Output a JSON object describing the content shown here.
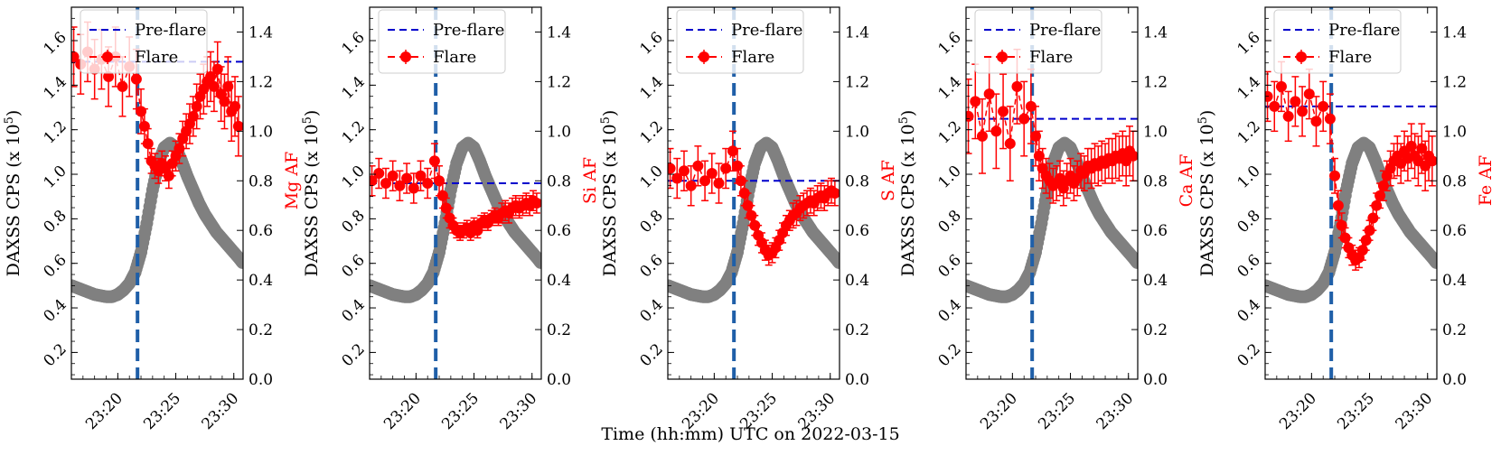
{
  "figure": {
    "xlabel": "Time (hh:mm) UTC on 2022-03-15",
    "left_ylabel": "DAXSS CPS (x 10",
    "left_ylabel_sup": "5",
    "left_ylabel_end": ")",
    "colors": {
      "daxss": "#808080",
      "flare": "#ff0000",
      "preflare": "#0000cc",
      "flare_start": "#1f5fa8"
    }
  },
  "chart_data": [
    {
      "type": "line",
      "title": "",
      "element": "Mg",
      "right_ylabel": "Mg AF",
      "x_ticks": [
        "23:20",
        "23:25",
        "23:30"
      ],
      "x_tick_values": [
        20,
        25,
        30
      ],
      "xlim": [
        16.0,
        30.8
      ],
      "left_ylim": [
        0.08,
        1.75
      ],
      "left_ticks": [
        "0.2",
        "0.4",
        "0.6",
        "0.8",
        "1.0",
        "1.2",
        "1.4",
        "1.6"
      ],
      "left_tick_values": [
        0.2,
        0.4,
        0.6,
        0.8,
        1.0,
        1.2,
        1.4,
        1.6
      ],
      "right_ylim": [
        0.0,
        1.5
      ],
      "right_ticks": [
        "0.0",
        "0.2",
        "0.4",
        "0.6",
        "0.8",
        "1.0",
        "1.2",
        "1.4"
      ],
      "right_tick_values": [
        0.0,
        0.2,
        0.4,
        0.6,
        0.8,
        1.0,
        1.2,
        1.4
      ],
      "flare_start": 21.7,
      "preflare_level": 1.28,
      "legend": [
        {
          "label": "Pre-flare"
        },
        {
          "label": "Flare"
        }
      ],
      "flare_series": {
        "x": [
          16.2,
          16.8,
          17.4,
          18.0,
          18.6,
          19.2,
          19.8,
          20.4,
          21.0,
          21.6,
          22.0,
          22.3,
          22.6,
          22.9,
          23.2,
          23.5,
          23.8,
          24.1,
          24.4,
          24.7,
          25.0,
          25.3,
          25.6,
          25.9,
          26.2,
          26.5,
          26.8,
          27.1,
          27.4,
          27.7,
          28.0,
          28.3,
          28.6,
          28.9,
          29.2,
          29.5,
          29.8,
          30.1,
          30.4
        ],
        "y": [
          1.3,
          1.27,
          1.32,
          1.25,
          1.29,
          1.22,
          1.3,
          1.18,
          1.26,
          1.21,
          1.08,
          1.02,
          0.95,
          0.88,
          0.86,
          0.84,
          0.87,
          0.85,
          0.82,
          0.87,
          0.9,
          0.93,
          0.97,
          1.0,
          1.03,
          1.06,
          1.1,
          1.14,
          1.17,
          1.2,
          1.22,
          1.18,
          1.25,
          1.15,
          1.12,
          1.18,
          1.08,
          1.1,
          1.02
        ],
        "err": [
          0.12,
          0.12,
          0.12,
          0.12,
          0.12,
          0.12,
          0.12,
          0.12,
          0.12,
          0.12,
          0.09,
          0.07,
          0.06,
          0.05,
          0.05,
          0.05,
          0.05,
          0.05,
          0.05,
          0.05,
          0.06,
          0.06,
          0.07,
          0.07,
          0.08,
          0.08,
          0.09,
          0.09,
          0.1,
          0.1,
          0.1,
          0.1,
          0.11,
          0.11,
          0.11,
          0.12,
          0.12,
          0.12,
          0.12
        ]
      }
    },
    {
      "type": "line",
      "title": "",
      "element": "Si",
      "right_ylabel": "Si AF",
      "x_ticks": [
        "23:20",
        "23:25",
        "23:30"
      ],
      "x_tick_values": [
        20,
        25,
        30
      ],
      "xlim": [
        16.0,
        30.8
      ],
      "left_ylim": [
        0.08,
        1.75
      ],
      "left_ticks": [
        "0.2",
        "0.4",
        "0.6",
        "0.8",
        "1.0",
        "1.2",
        "1.4",
        "1.6"
      ],
      "left_tick_values": [
        0.2,
        0.4,
        0.6,
        0.8,
        1.0,
        1.2,
        1.4,
        1.6
      ],
      "right_ylim": [
        0.0,
        1.5
      ],
      "right_ticks": [
        "0.0",
        "0.2",
        "0.4",
        "0.6",
        "0.8",
        "1.0",
        "1.2",
        "1.4"
      ],
      "right_tick_values": [
        0.0,
        0.2,
        0.4,
        0.6,
        0.8,
        1.0,
        1.2,
        1.4
      ],
      "flare_start": 21.7,
      "preflare_level": 0.79,
      "legend": [
        {
          "label": "Pre-flare"
        },
        {
          "label": "Flare"
        }
      ],
      "flare_series": {
        "x": [
          16.2,
          16.8,
          17.4,
          18.0,
          18.6,
          19.2,
          19.8,
          20.4,
          21.0,
          21.6,
          22.0,
          22.3,
          22.6,
          22.9,
          23.2,
          23.5,
          23.8,
          24.1,
          24.4,
          24.7,
          25.0,
          25.3,
          25.6,
          25.9,
          26.2,
          26.5,
          26.8,
          27.1,
          27.4,
          27.7,
          28.0,
          28.3,
          28.6,
          28.9,
          29.2,
          29.5,
          29.8,
          30.1,
          30.4
        ],
        "y": [
          0.8,
          0.83,
          0.79,
          0.82,
          0.78,
          0.81,
          0.77,
          0.82,
          0.79,
          0.88,
          0.8,
          0.74,
          0.69,
          0.65,
          0.62,
          0.6,
          0.59,
          0.6,
          0.61,
          0.59,
          0.62,
          0.6,
          0.63,
          0.64,
          0.63,
          0.65,
          0.66,
          0.65,
          0.67,
          0.68,
          0.67,
          0.69,
          0.7,
          0.69,
          0.7,
          0.71,
          0.7,
          0.72,
          0.71
        ],
        "err": [
          0.06,
          0.06,
          0.06,
          0.06,
          0.06,
          0.06,
          0.06,
          0.06,
          0.06,
          0.07,
          0.06,
          0.05,
          0.04,
          0.04,
          0.03,
          0.03,
          0.03,
          0.03,
          0.03,
          0.03,
          0.03,
          0.03,
          0.03,
          0.03,
          0.03,
          0.03,
          0.03,
          0.03,
          0.04,
          0.04,
          0.04,
          0.04,
          0.04,
          0.04,
          0.04,
          0.04,
          0.04,
          0.04,
          0.04
        ]
      }
    },
    {
      "type": "line",
      "title": "",
      "element": "S",
      "right_ylabel": "S AF",
      "x_ticks": [
        "23:20",
        "23:25",
        "23:30"
      ],
      "x_tick_values": [
        20,
        25,
        30
      ],
      "xlim": [
        16.0,
        30.8
      ],
      "left_ylim": [
        0.08,
        1.75
      ],
      "left_ticks": [
        "0.2",
        "0.4",
        "0.6",
        "0.8",
        "1.0",
        "1.2",
        "1.4",
        "1.6"
      ],
      "left_tick_values": [
        0.2,
        0.4,
        0.6,
        0.8,
        1.0,
        1.2,
        1.4,
        1.6
      ],
      "right_ylim": [
        0.0,
        1.5
      ],
      "right_ticks": [
        "0.0",
        "0.2",
        "0.4",
        "0.6",
        "0.8",
        "1.0",
        "1.2",
        "1.4"
      ],
      "right_tick_values": [
        0.0,
        0.2,
        0.4,
        0.6,
        0.8,
        1.0,
        1.2,
        1.4
      ],
      "flare_start": 21.7,
      "preflare_level": 0.8,
      "legend": [
        {
          "label": "Pre-flare"
        },
        {
          "label": "Flare"
        }
      ],
      "flare_series": {
        "x": [
          16.2,
          16.8,
          17.4,
          18.0,
          18.6,
          19.2,
          19.8,
          20.4,
          21.0,
          21.6,
          22.0,
          22.3,
          22.6,
          22.9,
          23.2,
          23.5,
          23.8,
          24.1,
          24.4,
          24.7,
          25.0,
          25.3,
          25.6,
          25.9,
          26.2,
          26.5,
          26.8,
          27.1,
          27.4,
          27.7,
          28.0,
          28.3,
          28.6,
          28.9,
          29.2,
          29.5,
          29.8,
          30.1,
          30.4
        ],
        "y": [
          0.85,
          0.81,
          0.84,
          0.78,
          0.86,
          0.8,
          0.83,
          0.79,
          0.85,
          0.92,
          0.86,
          0.8,
          0.75,
          0.7,
          0.66,
          0.62,
          0.58,
          0.55,
          0.52,
          0.5,
          0.51,
          0.53,
          0.56,
          0.59,
          0.62,
          0.64,
          0.66,
          0.67,
          0.69,
          0.7,
          0.71,
          0.72,
          0.71,
          0.73,
          0.74,
          0.73,
          0.75,
          0.76,
          0.75
        ],
        "err": [
          0.08,
          0.08,
          0.08,
          0.08,
          0.08,
          0.08,
          0.08,
          0.08,
          0.08,
          0.08,
          0.07,
          0.06,
          0.05,
          0.05,
          0.04,
          0.04,
          0.04,
          0.04,
          0.04,
          0.04,
          0.04,
          0.04,
          0.04,
          0.04,
          0.04,
          0.04,
          0.05,
          0.05,
          0.05,
          0.05,
          0.05,
          0.05,
          0.05,
          0.05,
          0.05,
          0.05,
          0.05,
          0.05,
          0.05
        ]
      }
    },
    {
      "type": "line",
      "title": "",
      "element": "Ca",
      "right_ylabel": "Ca AF",
      "x_ticks": [
        "23:20",
        "23:25",
        "23:30"
      ],
      "x_tick_values": [
        20,
        25,
        30
      ],
      "xlim": [
        16.0,
        30.8
      ],
      "left_ylim": [
        0.08,
        1.75
      ],
      "left_ticks": [
        "0.2",
        "0.4",
        "0.6",
        "0.8",
        "1.0",
        "1.2",
        "1.4",
        "1.6"
      ],
      "left_tick_values": [
        0.2,
        0.4,
        0.6,
        0.8,
        1.0,
        1.2,
        1.4,
        1.6
      ],
      "right_ylim": [
        0.0,
        1.5
      ],
      "right_ticks": [
        "0.0",
        "0.2",
        "0.4",
        "0.6",
        "0.8",
        "1.0",
        "1.2",
        "1.4"
      ],
      "right_tick_values": [
        0.0,
        0.2,
        0.4,
        0.6,
        0.8,
        1.0,
        1.2,
        1.4
      ],
      "flare_start": 21.7,
      "preflare_level": 1.05,
      "legend": [
        {
          "label": "Pre-flare"
        },
        {
          "label": "Flare"
        }
      ],
      "flare_series": {
        "x": [
          16.2,
          16.8,
          17.4,
          18.0,
          18.6,
          19.2,
          19.8,
          20.4,
          21.0,
          21.6,
          22.0,
          22.3,
          22.6,
          22.9,
          23.2,
          23.5,
          23.8,
          24.1,
          24.4,
          24.7,
          25.0,
          25.3,
          25.6,
          25.9,
          26.2,
          26.5,
          26.8,
          27.1,
          27.4,
          27.7,
          28.0,
          28.3,
          28.6,
          28.9,
          29.2,
          29.5,
          29.8,
          30.1,
          30.4
        ],
        "y": [
          1.06,
          1.12,
          0.98,
          1.15,
          1.0,
          1.08,
          0.95,
          1.18,
          1.05,
          1.1,
          0.98,
          0.9,
          0.85,
          0.82,
          0.8,
          0.78,
          0.79,
          0.81,
          0.77,
          0.8,
          0.82,
          0.79,
          0.81,
          0.84,
          0.83,
          0.86,
          0.85,
          0.87,
          0.86,
          0.88,
          0.87,
          0.89,
          0.88,
          0.9,
          0.89,
          0.91,
          0.88,
          0.92,
          0.9
        ],
        "err": [
          0.15,
          0.15,
          0.15,
          0.15,
          0.15,
          0.15,
          0.15,
          0.15,
          0.15,
          0.15,
          0.12,
          0.1,
          0.08,
          0.07,
          0.07,
          0.07,
          0.07,
          0.07,
          0.07,
          0.07,
          0.07,
          0.07,
          0.07,
          0.07,
          0.07,
          0.07,
          0.08,
          0.08,
          0.08,
          0.08,
          0.08,
          0.08,
          0.09,
          0.09,
          0.09,
          0.09,
          0.1,
          0.1,
          0.1
        ]
      }
    },
    {
      "type": "line",
      "title": "",
      "element": "Fe",
      "right_ylabel": "Fe AF",
      "x_ticks": [
        "23:20",
        "23:25",
        "23:30"
      ],
      "x_tick_values": [
        20,
        25,
        30
      ],
      "xlim": [
        16.0,
        30.8
      ],
      "left_ylim": [
        0.08,
        1.75
      ],
      "left_ticks": [
        "0.2",
        "0.4",
        "0.6",
        "0.8",
        "1.0",
        "1.2",
        "1.4",
        "1.6"
      ],
      "left_tick_values": [
        0.2,
        0.4,
        0.6,
        0.8,
        1.0,
        1.2,
        1.4,
        1.6
      ],
      "right_ylim": [
        0.0,
        1.5
      ],
      "right_ticks": [
        "0.0",
        "0.2",
        "0.4",
        "0.6",
        "0.8",
        "1.0",
        "1.2",
        "1.4"
      ],
      "right_tick_values": [
        0.0,
        0.2,
        0.4,
        0.6,
        0.8,
        1.0,
        1.2,
        1.4
      ],
      "flare_start": 21.7,
      "preflare_level": 1.1,
      "legend": [
        {
          "label": "Pre-flare"
        },
        {
          "label": "Flare"
        }
      ],
      "flare_series": {
        "x": [
          16.2,
          16.8,
          17.4,
          18.0,
          18.6,
          19.2,
          19.8,
          20.4,
          21.0,
          21.6,
          22.0,
          22.3,
          22.6,
          22.9,
          23.2,
          23.5,
          23.8,
          24.1,
          24.4,
          24.7,
          25.0,
          25.3,
          25.6,
          25.9,
          26.2,
          26.5,
          26.8,
          27.1,
          27.4,
          27.7,
          28.0,
          28.3,
          28.6,
          28.9,
          29.2,
          29.5,
          29.8,
          30.1,
          30.4
        ],
        "y": [
          1.14,
          1.1,
          1.18,
          1.06,
          1.12,
          1.08,
          1.15,
          1.04,
          1.1,
          1.05,
          0.82,
          0.7,
          0.62,
          0.57,
          0.53,
          0.5,
          0.48,
          0.49,
          0.52,
          0.56,
          0.6,
          0.65,
          0.7,
          0.74,
          0.78,
          0.82,
          0.85,
          0.88,
          0.9,
          0.87,
          0.92,
          0.89,
          0.94,
          0.9,
          0.88,
          0.93,
          0.86,
          0.9,
          0.88
        ],
        "err": [
          0.1,
          0.1,
          0.1,
          0.1,
          0.1,
          0.1,
          0.1,
          0.1,
          0.1,
          0.1,
          0.07,
          0.06,
          0.05,
          0.04,
          0.04,
          0.04,
          0.04,
          0.04,
          0.04,
          0.04,
          0.04,
          0.05,
          0.05,
          0.05,
          0.06,
          0.06,
          0.07,
          0.07,
          0.08,
          0.08,
          0.08,
          0.09,
          0.09,
          0.09,
          0.1,
          0.1,
          0.1,
          0.1,
          0.1
        ]
      }
    }
  ],
  "daxss_curve": {
    "x": [
      16.0,
      16.5,
      17.0,
      17.5,
      18.0,
      18.5,
      19.0,
      19.5,
      20.0,
      20.5,
      21.0,
      21.5,
      22.0,
      22.5,
      23.0,
      23.5,
      24.0,
      24.5,
      25.0,
      25.5,
      26.0,
      26.5,
      27.0,
      27.5,
      28.0,
      28.5,
      29.0,
      29.5,
      30.0,
      30.5,
      30.8
    ],
    "y": [
      0.5,
      0.49,
      0.48,
      0.47,
      0.46,
      0.455,
      0.45,
      0.45,
      0.46,
      0.48,
      0.51,
      0.56,
      0.65,
      0.78,
      0.93,
      1.05,
      1.12,
      1.14,
      1.12,
      1.06,
      0.99,
      0.93,
      0.87,
      0.82,
      0.78,
      0.74,
      0.71,
      0.68,
      0.65,
      0.62,
      0.6
    ]
  }
}
